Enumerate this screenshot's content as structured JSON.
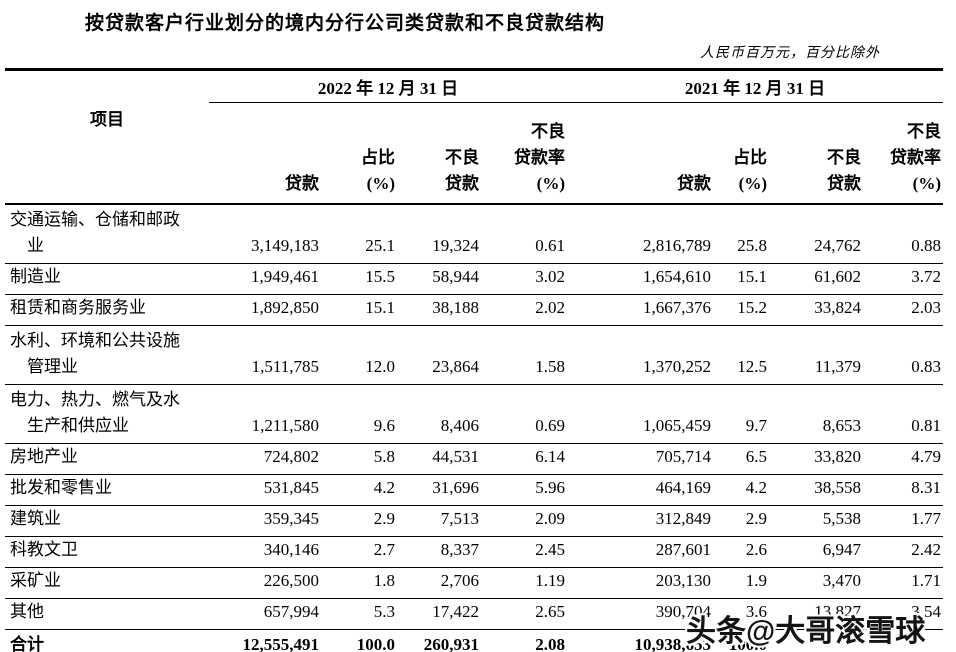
{
  "title": "按贷款客户行业划分的境内分行公司类贷款和不良贷款结构",
  "unit_note": "人民币百万元，百分比除外",
  "watermark": "头条@大哥滚雪球",
  "table": {
    "item_header": "项目",
    "period_headers": [
      "2022 年 12 月 31 日",
      "2021 年 12 月 31 日"
    ],
    "sub_headers": [
      "贷款",
      "占比\n(%)",
      "不良\n贷款",
      "不良\n贷款率\n(%)",
      "贷款",
      "占比\n(%)",
      "不良\n贷款",
      "不良\n贷款率\n(%)"
    ],
    "rows": [
      {
        "name": "交通运输、仓储和邮政\n　业",
        "values": [
          "3,149,183",
          "25.1",
          "19,324",
          "0.61",
          "2,816,789",
          "25.8",
          "24,762",
          "0.88"
        ],
        "total": false
      },
      {
        "name": "制造业",
        "values": [
          "1,949,461",
          "15.5",
          "58,944",
          "3.02",
          "1,654,610",
          "15.1",
          "61,602",
          "3.72"
        ],
        "total": false
      },
      {
        "name": "租赁和商务服务业",
        "values": [
          "1,892,850",
          "15.1",
          "38,188",
          "2.02",
          "1,667,376",
          "15.2",
          "33,824",
          "2.03"
        ],
        "total": false
      },
      {
        "name": "水利、环境和公共设施\n　管理业",
        "values": [
          "1,511,785",
          "12.0",
          "23,864",
          "1.58",
          "1,370,252",
          "12.5",
          "11,379",
          "0.83"
        ],
        "total": false
      },
      {
        "name": "电力、热力、燃气及水\n　生产和供应业",
        "values": [
          "1,211,580",
          "9.6",
          "8,406",
          "0.69",
          "1,065,459",
          "9.7",
          "8,653",
          "0.81"
        ],
        "total": false
      },
      {
        "name": "房地产业",
        "values": [
          "724,802",
          "5.8",
          "44,531",
          "6.14",
          "705,714",
          "6.5",
          "33,820",
          "4.79"
        ],
        "total": false
      },
      {
        "name": "批发和零售业",
        "values": [
          "531,845",
          "4.2",
          "31,696",
          "5.96",
          "464,169",
          "4.2",
          "38,558",
          "8.31"
        ],
        "total": false
      },
      {
        "name": "建筑业",
        "values": [
          "359,345",
          "2.9",
          "7,513",
          "2.09",
          "312,849",
          "2.9",
          "5,538",
          "1.77"
        ],
        "total": false
      },
      {
        "name": "科教文卫",
        "values": [
          "340,146",
          "2.7",
          "8,337",
          "2.45",
          "287,601",
          "2.6",
          "6,947",
          "2.42"
        ],
        "total": false
      },
      {
        "name": "采矿业",
        "values": [
          "226,500",
          "1.8",
          "2,706",
          "1.19",
          "203,130",
          "1.9",
          "3,470",
          "1.71"
        ],
        "total": false
      },
      {
        "name": "其他",
        "values": [
          "657,994",
          "5.3",
          "17,422",
          "2.65",
          "390,704",
          "3.6",
          "13,827",
          "3.54"
        ],
        "total": false
      },
      {
        "name": "合计",
        "values": [
          "12,555,491",
          "100.0",
          "260,931",
          "2.08",
          "10,938,653",
          "100.0",
          "",
          ""
        ],
        "total": true
      }
    ]
  }
}
